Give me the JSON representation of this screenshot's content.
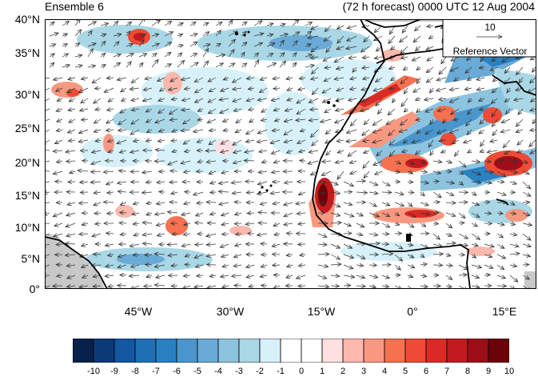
{
  "header": {
    "left_title": "Ensemble 6",
    "right_title": "(72 h forecast) 0000 UTC 12 Aug 2004"
  },
  "map": {
    "lat_ticks": [
      "40°N",
      "35°N",
      "30°N",
      "25°N",
      "20°N",
      "15°N",
      "10°N",
      "5°N",
      "0°"
    ],
    "lon_ticks": [
      "45°W",
      "30°W",
      "15°W",
      "0°",
      "15°E"
    ],
    "reference_vector": {
      "value": "10",
      "label": "Reference Vector"
    },
    "colors": {
      "land_mask": "#c8c8c8",
      "coast": "#000000",
      "vector": "#333333"
    }
  },
  "colorbar": {
    "labels": [
      "-10",
      "-9",
      "-8",
      "-7",
      "-6",
      "-5",
      "-4",
      "-3",
      "-2",
      "-1",
      "0",
      "1",
      "2",
      "3",
      "4",
      "5",
      "6",
      "7",
      "8",
      "9",
      "10"
    ],
    "colors": [
      "#08214a",
      "#0b3a78",
      "#1557a0",
      "#1f6fb4",
      "#2b80c0",
      "#4a96cc",
      "#6aaad6",
      "#8cc3df",
      "#a9d7e6",
      "#d6f1fa",
      "#ffffff",
      "#ffffff",
      "#fde0df",
      "#fbb8ad",
      "#f89880",
      "#f5714f",
      "#ef4a35",
      "#da2a26",
      "#c31a1f",
      "#9d0f17",
      "#6b0409"
    ]
  }
}
